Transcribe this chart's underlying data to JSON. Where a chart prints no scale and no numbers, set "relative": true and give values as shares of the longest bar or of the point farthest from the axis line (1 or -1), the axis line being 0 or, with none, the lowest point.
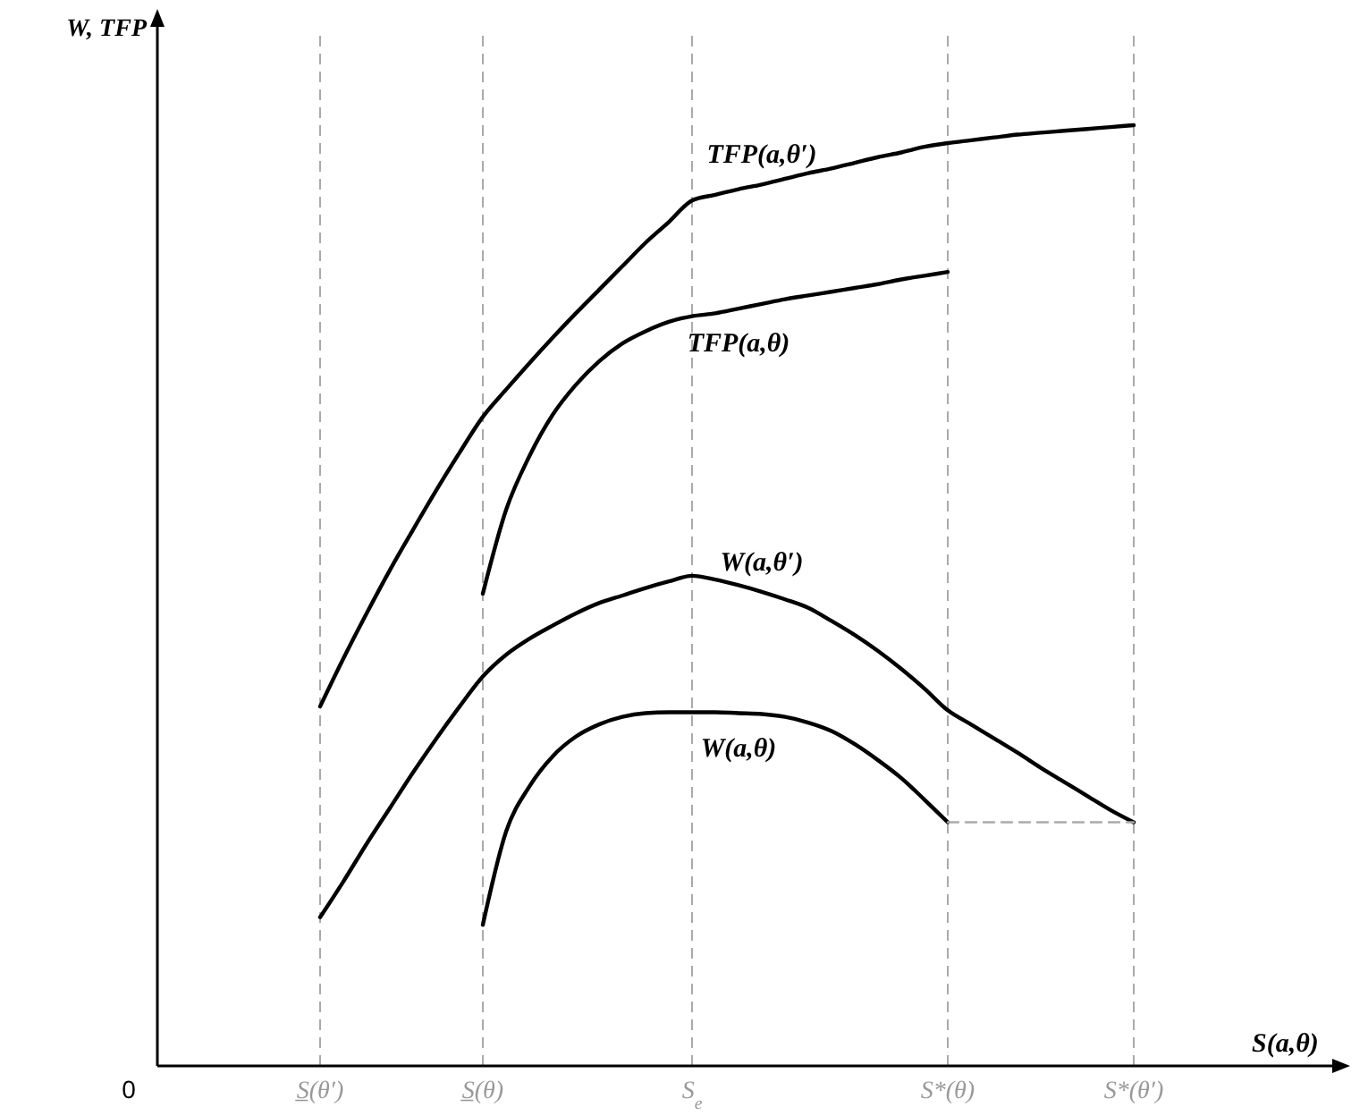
{
  "chart_data": {
    "type": "line",
    "relative": true,
    "xlabel": "S(a,θ)",
    "ylabel": "W, TFP",
    "marker": "none",
    "categories": [
      "0",
      null,
      null,
      null,
      null,
      null,
      null,
      "S̲(θ′)",
      null,
      null,
      null,
      null,
      null,
      null,
      "S̲(θ)",
      null,
      null,
      null,
      null,
      null,
      null,
      null,
      null,
      "S$_{e}$",
      null,
      null,
      null,
      null,
      null,
      null,
      null,
      null,
      null,
      null,
      "S*(θ)",
      null,
      null,
      null,
      null,
      null,
      null,
      null,
      "S*(θ′)"
    ],
    "series": [
      {
        "name": "TFP(a,θ′)",
        "color": "#000000",
        "values": [
          null,
          null,
          null,
          null,
          null,
          null,
          null,
          0.382,
          0.433,
          0.481,
          0.527,
          0.57,
          0.612,
          0.652,
          0.69,
          0.719,
          0.747,
          0.774,
          0.8,
          0.825,
          0.85,
          0.875,
          0.897,
          0.92,
          0.926,
          0.932,
          0.937,
          0.943,
          0.949,
          0.954,
          0.96,
          0.966,
          0.971,
          0.977,
          0.981,
          0.984,
          0.987,
          0.99,
          0.992,
          0.994,
          0.996,
          0.998,
          1
        ]
      },
      {
        "name": "TFP(a,θ)",
        "color": "#000000",
        "values": [
          null,
          null,
          null,
          null,
          null,
          null,
          null,
          null,
          null,
          null,
          null,
          null,
          null,
          null,
          0.502,
          0.591,
          0.648,
          0.692,
          0.724,
          0.749,
          0.768,
          0.781,
          0.791,
          0.797,
          0.8,
          0.805,
          0.81,
          0.815,
          0.819,
          0.823,
          0.827,
          0.831,
          0.836,
          0.84,
          0.844,
          null,
          null,
          null,
          null,
          null,
          null,
          null,
          null
        ]
      },
      {
        "name": "W(a,θ′)",
        "color": "#000000",
        "values": [
          null,
          null,
          null,
          null,
          null,
          null,
          null,
          0.158,
          0.196,
          0.236,
          0.274,
          0.312,
          0.348,
          0.382,
          0.414,
          0.437,
          0.454,
          0.468,
          0.481,
          0.492,
          0.5,
          0.508,
          0.515,
          0.521,
          0.517,
          0.511,
          0.504,
          0.496,
          0.487,
          0.473,
          0.458,
          0.441,
          0.422,
          0.401,
          0.378,
          0.363,
          0.348,
          0.333,
          0.317,
          0.302,
          0.287,
          0.272,
          0.259
        ]
      },
      {
        "name": "W(a,θ)",
        "color": "#000000",
        "values": [
          null,
          null,
          null,
          null,
          null,
          null,
          null,
          null,
          null,
          null,
          null,
          null,
          null,
          null,
          0.15,
          0.249,
          0.297,
          0.329,
          0.35,
          0.363,
          0.371,
          0.375,
          0.376,
          0.376,
          0.376,
          0.375,
          0.374,
          0.371,
          0.365,
          0.356,
          0.342,
          0.325,
          0.306,
          0.283,
          0.259,
          null,
          null,
          null,
          null,
          null,
          null,
          null,
          null
        ]
      },
      {
        "color": "#aaaaaa",
        "line_style": "dashed",
        "values": [
          null,
          null,
          null,
          null,
          null,
          null,
          null,
          null,
          null,
          null,
          null,
          null,
          null,
          null,
          null,
          null,
          null,
          null,
          null,
          null,
          null,
          null,
          null,
          null,
          null,
          null,
          null,
          null,
          null,
          null,
          null,
          null,
          null,
          null,
          0.259,
          0.259,
          0.259,
          0.259,
          0.259,
          0.259,
          0.259,
          0.259,
          0.259
        ]
      }
    ],
    "ref_lines": [
      {
        "axis": "x",
        "value": "S̲(θ′)",
        "color": "#aaaaaa",
        "line_style": "dashed"
      },
      {
        "axis": "x",
        "value": "S̲(θ)",
        "color": "#aaaaaa",
        "line_style": "dashed"
      },
      {
        "axis": "x",
        "value": "S$_{e}$",
        "color": "#aaaaaa",
        "line_style": "dashed"
      },
      {
        "axis": "x",
        "value": "S*(θ)",
        "color": "#aaaaaa",
        "line_style": "dashed"
      },
      {
        "axis": "x",
        "value": "S*(θ′)",
        "color": "#aaaaaa",
        "line_style": "dashed"
      }
    ]
  }
}
